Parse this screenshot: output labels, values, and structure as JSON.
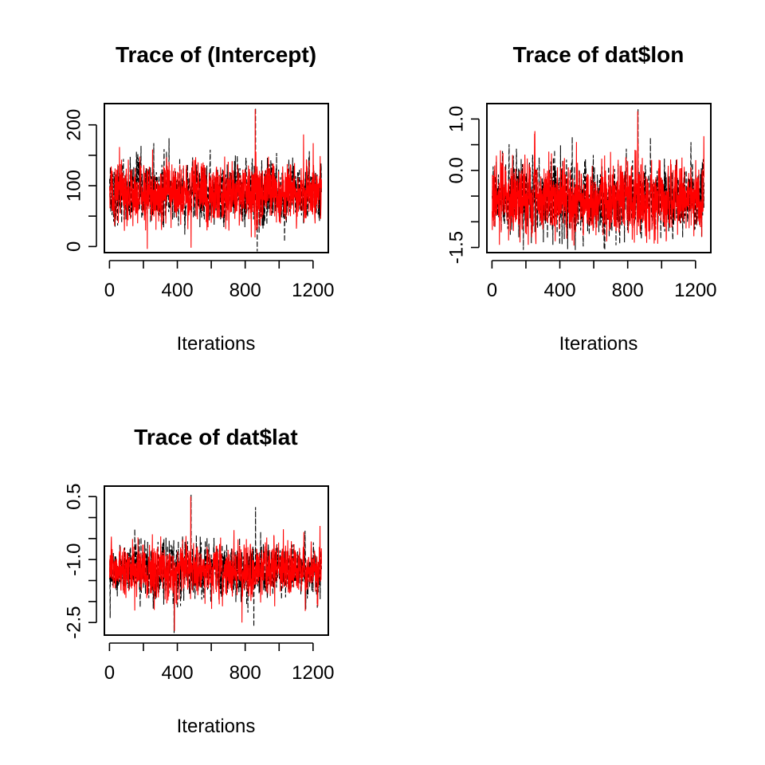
{
  "colors": {
    "background": "#ffffff",
    "axes": "#000000",
    "chain_black": "#000000",
    "chain_red": "#ff0000"
  },
  "chart_data": [
    {
      "type": "line",
      "title": "Trace of (Intercept)",
      "xlabel": "Iterations",
      "ylabel": "",
      "xlim": [
        -30,
        1290
      ],
      "ylim": [
        -10,
        235
      ],
      "xticks": [
        0,
        400,
        800,
        1200
      ],
      "x_minor_ticks": [
        200,
        600,
        1000
      ],
      "yticks": [
        0,
        100,
        200
      ],
      "y_minor_ticks": [
        50,
        150
      ],
      "n_iterations": 1250,
      "series": [
        {
          "color": "#000000",
          "center": 88,
          "spread": 24,
          "min": -8,
          "max": 230,
          "spikes": [
            [
              860,
              228
            ],
            [
              870,
              -8
            ],
            [
              260,
              170
            ],
            [
              350,
              178
            ]
          ]
        },
        {
          "color": "#ff0000",
          "center": 88,
          "spread": 24,
          "min": -5,
          "max": 228,
          "spikes": [
            [
              858,
              226
            ],
            [
              222,
              -4
            ],
            [
              480,
              -2
            ],
            [
              1200,
              170
            ]
          ]
        }
      ]
    },
    {
      "type": "line",
      "title": "Trace of dat$lon",
      "xlabel": "Iterations",
      "ylabel": "",
      "xlim": [
        -30,
        1290
      ],
      "ylim": [
        -1.6,
        1.3
      ],
      "xticks": [
        0,
        400,
        800,
        1200
      ],
      "x_minor_ticks": [
        200,
        600,
        1000
      ],
      "yticks": [
        -1.5,
        0.0,
        1.0
      ],
      "ytick_labels": [
        "-1.5",
        "0.0",
        "1.0"
      ],
      "y_minor_ticks": [
        -1.0,
        -0.5,
        0.5
      ],
      "n_iterations": 1250,
      "series": [
        {
          "color": "#000000",
          "center": -0.55,
          "spread": 0.33,
          "min": -1.55,
          "max": 1.2,
          "spikes": [
            [
              860,
              1.2
            ],
            [
              490,
              -1.55
            ],
            [
              780,
              -1.4
            ]
          ]
        },
        {
          "color": "#ff0000",
          "center": -0.55,
          "spread": 0.33,
          "min": -1.5,
          "max": 1.15,
          "spikes": [
            [
              858,
              1.15
            ],
            [
              120,
              0.3
            ],
            [
              1200,
              0.2
            ]
          ]
        }
      ]
    },
    {
      "type": "line",
      "title": "Trace of dat$lat",
      "xlabel": "Iterations",
      "ylabel": "",
      "xlim": [
        -30,
        1290
      ],
      "ylim": [
        -2.8,
        0.75
      ],
      "xticks": [
        0,
        400,
        800,
        1200
      ],
      "x_minor_ticks": [
        200,
        600,
        1000
      ],
      "yticks": [
        -2.5,
        -1.0,
        0.5
      ],
      "ytick_labels": [
        "-2.5",
        "-1.0",
        "0.5"
      ],
      "y_minor_ticks": [
        -2.0,
        -1.5,
        -0.5,
        0.0
      ],
      "n_iterations": 1250,
      "series": [
        {
          "color": "#000000",
          "center": -1.25,
          "spread": 0.3,
          "min": -2.75,
          "max": 0.55,
          "spikes": [
            [
              480,
              0.55
            ],
            [
              380,
              -2.75
            ],
            [
              860,
              0.25
            ],
            [
              850,
              -2.6
            ]
          ]
        },
        {
          "color": "#ff0000",
          "center": -1.25,
          "spread": 0.3,
          "min": -2.7,
          "max": 0.5,
          "spikes": [
            [
              478,
              0.5
            ],
            [
              382,
              -2.7
            ],
            [
              780,
              -2.5
            ],
            [
              1240,
              -0.2
            ]
          ]
        }
      ]
    }
  ]
}
